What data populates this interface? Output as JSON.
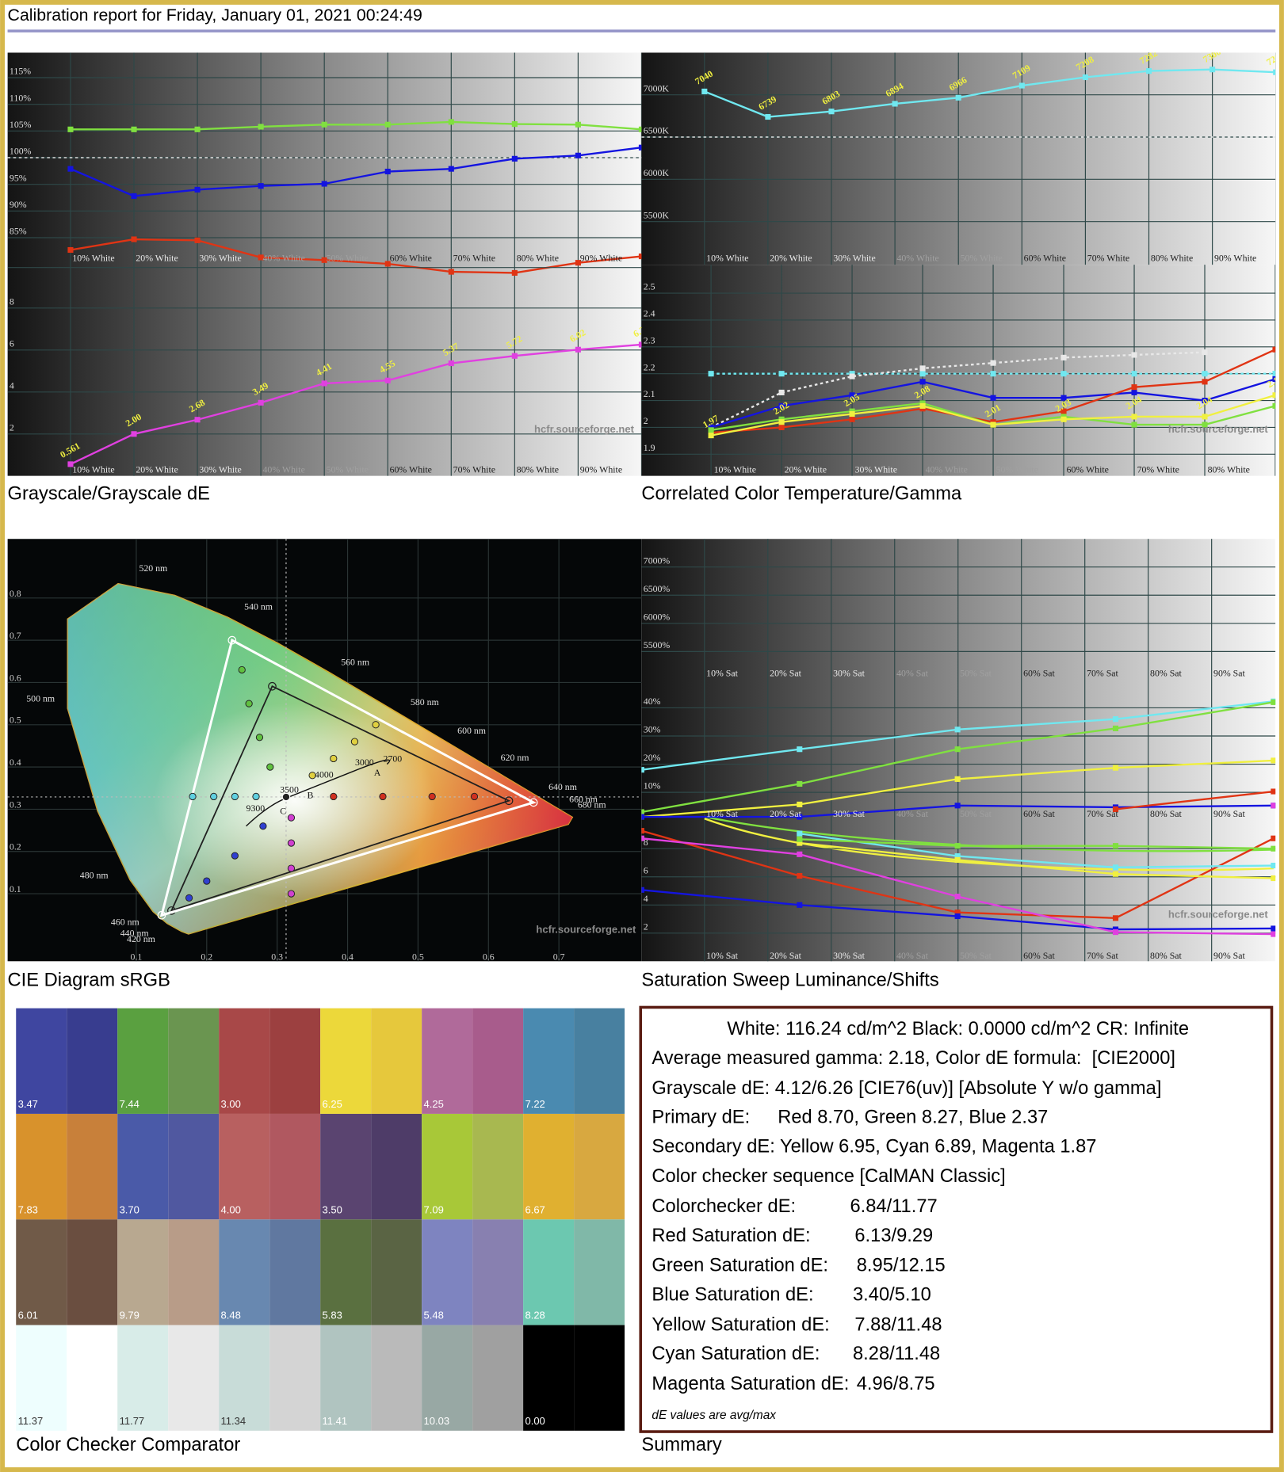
{
  "header": {
    "title": "Calibration report for Friday, January 01, 2021 00:24:49"
  },
  "watermark": "hcfr.sourceforge.net",
  "x_labels_white": [
    "10% White",
    "20% White",
    "30% White",
    "40% White",
    "50% White",
    "60% White",
    "70% White",
    "80% White",
    "90% White"
  ],
  "x_labels_sat": [
    "10% Sat",
    "20% Sat",
    "30% Sat",
    "40% Sat",
    "50% Sat",
    "60% Sat",
    "70% Sat",
    "80% Sat",
    "90% Sat"
  ],
  "grayscale": {
    "caption": "Grayscale/Grayscale dE",
    "balance": {
      "ylim": [
        79.4,
        119.7
      ],
      "target": 100,
      "yticks": [
        {
          "value": 115,
          "label": "115%"
        },
        {
          "value": 110,
          "label": "110%"
        },
        {
          "value": 105,
          "label": "105%"
        },
        {
          "value": 100,
          "label": "100%"
        },
        {
          "value": 95,
          "label": "95%"
        },
        {
          "value": 90,
          "label": "90%"
        },
        {
          "value": 85,
          "label": "85%"
        }
      ],
      "series": [
        {
          "color": "#80e040",
          "values": [
            105.3,
            105.3,
            105.3,
            105.8,
            106.2,
            106.2,
            106.7,
            106.3,
            106.2,
            105.3
          ]
        },
        {
          "color": "#1414e0",
          "values": [
            97.9,
            92.8,
            94.0,
            94.7,
            95.1,
            97.4,
            97.9,
            99.8,
            100.4,
            101.9
          ]
        },
        {
          "color": "#e03414",
          "values": [
            82.7,
            84.7,
            84.5,
            81.3,
            80.8,
            80.1,
            78.6,
            78.4,
            80.3,
            81.5
          ]
        }
      ]
    },
    "de": {
      "ylim": [
        0,
        9.93
      ],
      "yticks": [
        8,
        6,
        4,
        2
      ],
      "color": "#e040e0",
      "values": [
        0.561,
        2.0,
        2.68,
        3.49,
        4.41,
        4.55,
        5.37,
        5.72,
        6.02,
        6.26
      ],
      "value_labels": [
        "0.561",
        "2.00",
        "2.68",
        "3.49",
        "4.41",
        "4.55",
        "5.37",
        "5.72",
        "6.02",
        "6.26"
      ]
    }
  },
  "cct_gamma": {
    "caption": "Correlated Color Temperature/Gamma",
    "cct": {
      "ylim": [
        4989,
        7500
      ],
      "target": 6500,
      "color": "#70e8f0",
      "yticks": [
        {
          "value": 7000,
          "label": "7000K"
        },
        {
          "value": 6500,
          "label": "6500K"
        },
        {
          "value": 6000,
          "label": "6000K"
        },
        {
          "value": 5500,
          "label": "5500K"
        }
      ],
      "values": [
        7040,
        6739,
        6803,
        6894,
        6966,
        7109,
        7208,
        7282,
        7300,
        7267
      ]
    },
    "gamma": {
      "ylim": [
        1.819,
        2.606
      ],
      "yticks": [
        2.5,
        2.4,
        2.3,
        2.2,
        2.1,
        2,
        1.9
      ],
      "series": [
        {
          "color": "#70e8f0",
          "dashed": true,
          "values": [
            2.2,
            2.2,
            2.2,
            2.2,
            2.2,
            2.2,
            2.2,
            2.2,
            2.2
          ]
        },
        {
          "color": "#e8e8e8",
          "dashed": true,
          "values": [
            2.0,
            2.13,
            2.19,
            2.22,
            2.24,
            2.26,
            2.27,
            2.28,
            null
          ]
        },
        {
          "color": "#1414e0",
          "values": [
            2.0,
            2.08,
            2.12,
            2.17,
            2.11,
            2.11,
            2.13,
            2.1,
            2.18
          ]
        },
        {
          "color": "#e03414",
          "values": [
            1.98,
            2.0,
            2.03,
            2.07,
            2.02,
            2.06,
            2.15,
            2.17,
            2.29
          ]
        },
        {
          "color": "#80e040",
          "values": [
            1.99,
            2.03,
            2.06,
            2.09,
            2.01,
            2.04,
            2.01,
            2.01,
            2.08
          ]
        },
        {
          "color": "#f0f040",
          "labelled": true,
          "values": [
            1.97,
            2.02,
            2.05,
            2.08,
            2.01,
            2.03,
            2.04,
            2.04,
            2.12
          ]
        }
      ]
    }
  },
  "cie": {
    "caption": "CIE Diagram sRGB",
    "xlim": [
      -0.0827,
      0.8173
    ],
    "ylim": [
      -0.06,
      0.94
    ],
    "xticks": [
      0.1,
      0.2,
      0.3,
      0.4,
      0.5,
      0.6,
      0.7
    ],
    "yticks": [
      0.8,
      0.7,
      0.6,
      0.5,
      0.4,
      0.3,
      0.2,
      0.1
    ],
    "wavelength_labels": [
      "520 nm",
      "540 nm",
      "560 nm",
      "580 nm",
      "600 nm",
      "620 nm",
      "640 nm",
      "660 nm",
      "680 nm",
      "500 nm",
      "480 nm",
      "460 nm",
      "440 nm",
      "420 nm"
    ],
    "cct_labels": [
      "9300",
      "3500",
      "4000",
      "3000",
      "2700",
      "A",
      "B",
      "C"
    ],
    "white_point": [
      0.3127,
      0.329
    ],
    "reference": [
      [
        0.629,
        0.32
      ],
      [
        0.293,
        0.591
      ],
      [
        0.15,
        0.06
      ]
    ],
    "measured": [
      [
        0.664,
        0.316
      ],
      [
        0.236,
        0.7
      ],
      [
        0.136,
        0.049
      ]
    ],
    "sweeps": [
      {
        "color": "#d03020",
        "points": [
          [
            0.38,
            0.33
          ],
          [
            0.45,
            0.33
          ],
          [
            0.52,
            0.33
          ],
          [
            0.58,
            0.33
          ]
        ]
      },
      {
        "color": "#60c040",
        "points": [
          [
            0.29,
            0.4
          ],
          [
            0.275,
            0.47
          ],
          [
            0.26,
            0.55
          ],
          [
            0.25,
            0.63
          ]
        ]
      },
      {
        "color": "#3040d0",
        "points": [
          [
            0.28,
            0.26
          ],
          [
            0.24,
            0.19
          ],
          [
            0.2,
            0.13
          ],
          [
            0.175,
            0.09
          ]
        ]
      },
      {
        "color": "#60d0e0",
        "points": [
          [
            0.27,
            0.33
          ],
          [
            0.24,
            0.33
          ],
          [
            0.21,
            0.33
          ],
          [
            0.18,
            0.33
          ]
        ]
      },
      {
        "color": "#d040d0",
        "points": [
          [
            0.32,
            0.28
          ],
          [
            0.32,
            0.22
          ],
          [
            0.32,
            0.16
          ],
          [
            0.32,
            0.1
          ]
        ]
      },
      {
        "color": "#e0d040",
        "points": [
          [
            0.35,
            0.38
          ],
          [
            0.38,
            0.42
          ],
          [
            0.41,
            0.46
          ],
          [
            0.44,
            0.5
          ]
        ]
      }
    ]
  },
  "saturation": {
    "caption": "Saturation Sweep Luminance/Shifts",
    "shift": {
      "ylim": [
        5000,
        7500
      ],
      "yticks": [
        {
          "value": 7000,
          "label": "7000%"
        },
        {
          "value": 6500,
          "label": "6500%"
        },
        {
          "value": 6000,
          "label": "6000%"
        },
        {
          "value": 5500,
          "label": "5500%"
        }
      ]
    },
    "luminance": {
      "ylim": [
        0,
        50
      ],
      "yticks": [
        {
          "value": 40,
          "label": "40%"
        },
        {
          "value": 30,
          "label": "30%"
        },
        {
          "value": 20,
          "label": "20%"
        },
        {
          "value": 10,
          "label": "10%"
        }
      ],
      "series": [
        {
          "color": "#70e8f0",
          "values": [
            18,
            25.3,
            32.3,
            36,
            42.3
          ]
        },
        {
          "color": "#80e040",
          "values": [
            3,
            13,
            25.3,
            32.7,
            42
          ]
        },
        {
          "color": "#f0f040",
          "values": [
            1.3,
            5.7,
            14.7,
            18.7,
            21.3
          ]
        },
        {
          "color": "#1414e0",
          "values": [
            1.3,
            1.3,
            5.3,
            4.7,
            5.3
          ]
        },
        {
          "color": "#e03414",
          "values": [
            null,
            null,
            null,
            4,
            10.3
          ]
        },
        {
          "color": "#e040e0",
          "values": [
            null,
            null,
            null,
            null,
            5.3
          ]
        }
      ]
    },
    "de": {
      "ylim": [
        0,
        10
      ],
      "yticks": [
        8,
        6,
        4,
        2
      ],
      "series": [
        {
          "color": "#e03414",
          "values": [
            9.27,
            6.07,
            3.47,
            3.07,
            8.73
          ]
        },
        {
          "color": "#1414e0",
          "values": [
            5.07,
            4.0,
            3.2,
            2.27,
            2.33
          ]
        },
        {
          "color": "#e040e0",
          "values": [
            8.73,
            7.6,
            4.6,
            2.07,
            1.93
          ]
        },
        {
          "color": "#70e8f0",
          "values": [
            null,
            9.07,
            7.47,
            6.67,
            6.8
          ]
        },
        {
          "color": "#f0f040",
          "values": [
            null,
            8.4,
            7.2,
            6.2,
            5.9
          ]
        },
        {
          "color": "#80e040",
          "values": [
            null,
            8.67,
            8.2,
            8.2,
            8.0
          ]
        }
      ]
    }
  },
  "colorchecker": {
    "caption": "Color Checker Comparator",
    "cells": [
      {
        "measured": "#3f46a0",
        "reference": "#383d8f",
        "label": "3.47"
      },
      {
        "measured": "#5aa040",
        "reference": "#6a9550",
        "label": "7.44"
      },
      {
        "measured": "#a84848",
        "reference": "#9c4040",
        "label": "3.00"
      },
      {
        "measured": "#ecd83a",
        "reference": "#e6c83c",
        "label": "6.25"
      },
      {
        "measured": "#b06a9a",
        "reference": "#a85c8c",
        "label": "4.25"
      },
      {
        "measured": "#4a8ab0",
        "reference": "#4880a0",
        "label": "7.22"
      },
      {
        "measured": "#d8922c",
        "reference": "#c8803a",
        "label": "7.83"
      },
      {
        "measured": "#4a5aa8",
        "reference": "#5058a0",
        "label": "3.70"
      },
      {
        "measured": "#b86060",
        "reference": "#b05860",
        "label": "4.00"
      },
      {
        "measured": "#5a4470",
        "reference": "#4e3c68",
        "label": "3.50"
      },
      {
        "measured": "#a8c838",
        "reference": "#a8b850",
        "label": "7.09"
      },
      {
        "measured": "#e0b030",
        "reference": "#d8a840",
        "label": "6.67"
      },
      {
        "measured": "#705a48",
        "reference": "#6a4e40",
        "label": "6.01"
      },
      {
        "measured": "#b8a890",
        "reference": "#b89c88",
        "label": "9.79"
      },
      {
        "measured": "#6888b0",
        "reference": "#6078a0",
        "label": "8.48"
      },
      {
        "measured": "#5a7040",
        "reference": "#5a6444",
        "label": "5.83"
      },
      {
        "measured": "#7e84c0",
        "reference": "#8880b0",
        "label": "5.48"
      },
      {
        "measured": "#6cc8b0",
        "reference": "#80b8a8",
        "label": "8.28"
      },
      {
        "measured": "#eefefe",
        "reference": "#ffffff",
        "label": "11.37"
      },
      {
        "measured": "#d8ece8",
        "reference": "#e8e8e8",
        "label": "11.77"
      },
      {
        "measured": "#c8dcd8",
        "reference": "#d4d4d4",
        "label": "11.34"
      },
      {
        "measured": "#b0c4c0",
        "reference": "#bababa",
        "label": "11.41"
      },
      {
        "measured": "#98a8a4",
        "reference": "#a0a0a0",
        "label": "10.03"
      },
      {
        "measured": "#000000",
        "reference": "#000000",
        "label": "0.00"
      }
    ]
  },
  "summary": {
    "caption": "Summary",
    "lines": [
      {
        "label": "White: 116.24 cd/m^2 Black: 0.0000 cd/m^2 CR: Infinite"
      },
      {
        "label": "Average measured gamma: 2.18, Color dE formula:  [CIE2000]"
      },
      {
        "label": "Grayscale dE: 4.12/6.26 [CIE76(uv)] [Absolute Y w/o gamma]"
      },
      {
        "label": "Primary dE:",
        "value": "Red 8.70, Green 8.27, Blue 2.37"
      },
      {
        "label": "Secondary dE: Yellow 6.95, Cyan 6.89, Magenta 1.87"
      },
      {
        "label": "Color checker sequence [CalMAN Classic]"
      },
      {
        "label": "Colorchecker dE:",
        "value": "6.84/11.77"
      },
      {
        "label": "Red Saturation dE:",
        "value": "6.13/9.29"
      },
      {
        "label": "Green Saturation dE:",
        "value": "8.95/12.15"
      },
      {
        "label": "Blue Saturation dE:",
        "value": "3.40/5.10"
      },
      {
        "label": "Yellow Saturation dE:",
        "value": "7.88/11.48"
      },
      {
        "label": "Cyan Saturation dE:",
        "value": "8.28/11.48"
      },
      {
        "label": "Magenta Saturation dE:",
        "value": "4.96/8.75"
      },
      {
        "label": "dE values are avg/max"
      }
    ]
  }
}
